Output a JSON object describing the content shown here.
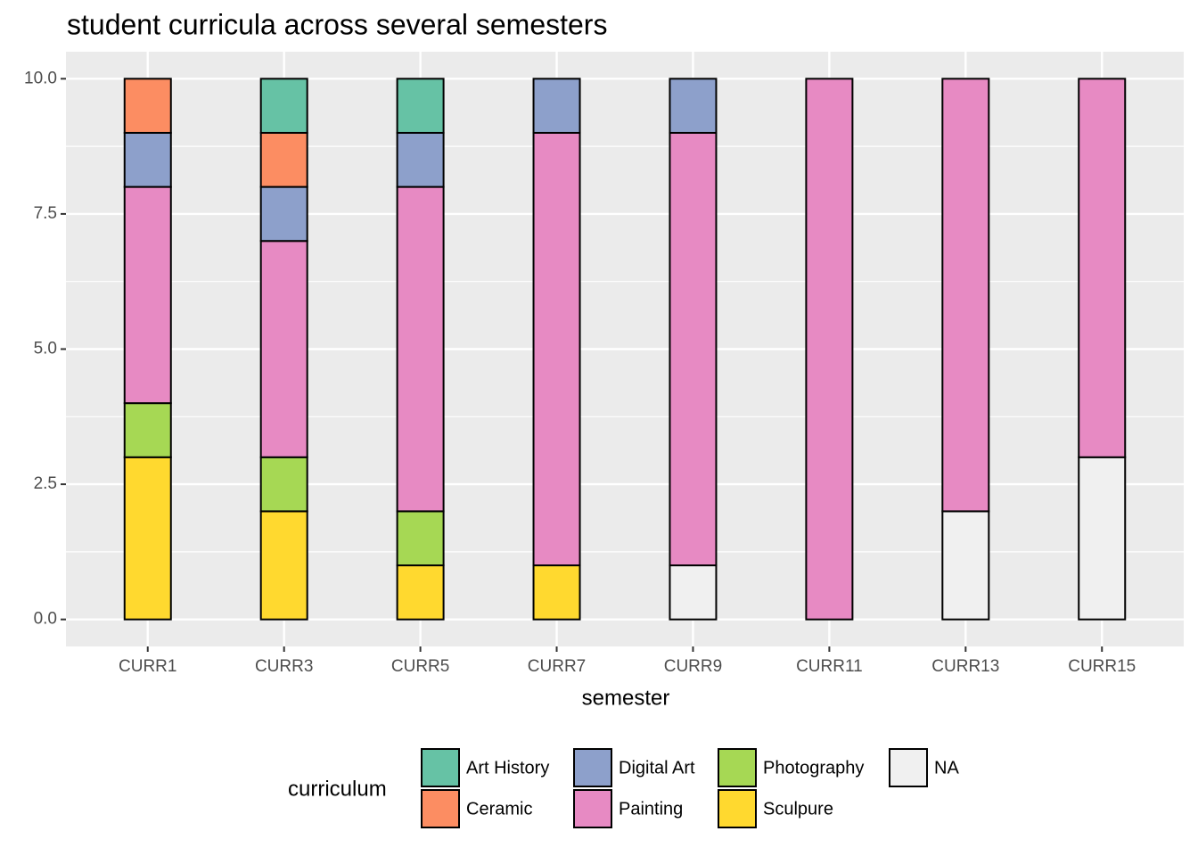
{
  "chart_data": {
    "type": "stacked_bar",
    "title": "student curricula across several semesters",
    "x_label": "semester",
    "legend_title": "curriculum",
    "categories": [
      "CURR1",
      "CURR3",
      "CURR5",
      "CURR7",
      "CURR9",
      "CURR11",
      "CURR13",
      "CURR15"
    ],
    "series": [
      {
        "name": "Art History",
        "color": "#66c2a5",
        "values": [
          0,
          1,
          1,
          0,
          0,
          0,
          0,
          0
        ]
      },
      {
        "name": "Ceramic",
        "color": "#fc8d62",
        "values": [
          1,
          1,
          0,
          0,
          0,
          0,
          0,
          0
        ]
      },
      {
        "name": "Digital Art",
        "color": "#8da0cb",
        "values": [
          1,
          1,
          1,
          1,
          1,
          0,
          0,
          0
        ]
      },
      {
        "name": "Painting",
        "color": "#e78ac3",
        "values": [
          4,
          4,
          6,
          8,
          8,
          10,
          8,
          7
        ]
      },
      {
        "name": "Photography",
        "color": "#a6d854",
        "values": [
          1,
          1,
          1,
          0,
          0,
          0,
          0,
          0
        ]
      },
      {
        "name": "Sculpure",
        "color": "#ffd92f",
        "values": [
          3,
          2,
          1,
          1,
          0,
          0,
          0,
          0
        ]
      },
      {
        "name": "NA",
        "color": "#f0f0f0",
        "values": [
          0,
          0,
          0,
          0,
          1,
          0,
          2,
          3
        ]
      }
    ],
    "ylim": [
      -0.5,
      10.5
    ],
    "yticks": [
      {
        "value": 0,
        "label": "0.0"
      },
      2.5,
      {
        "value": 5,
        "label": "5.0"
      },
      {
        "value": 7.5,
        "label": "7.5"
      },
      {
        "value": 10,
        "label": "10.0"
      }
    ],
    "grid": true,
    "legend_position": "bottom"
  }
}
